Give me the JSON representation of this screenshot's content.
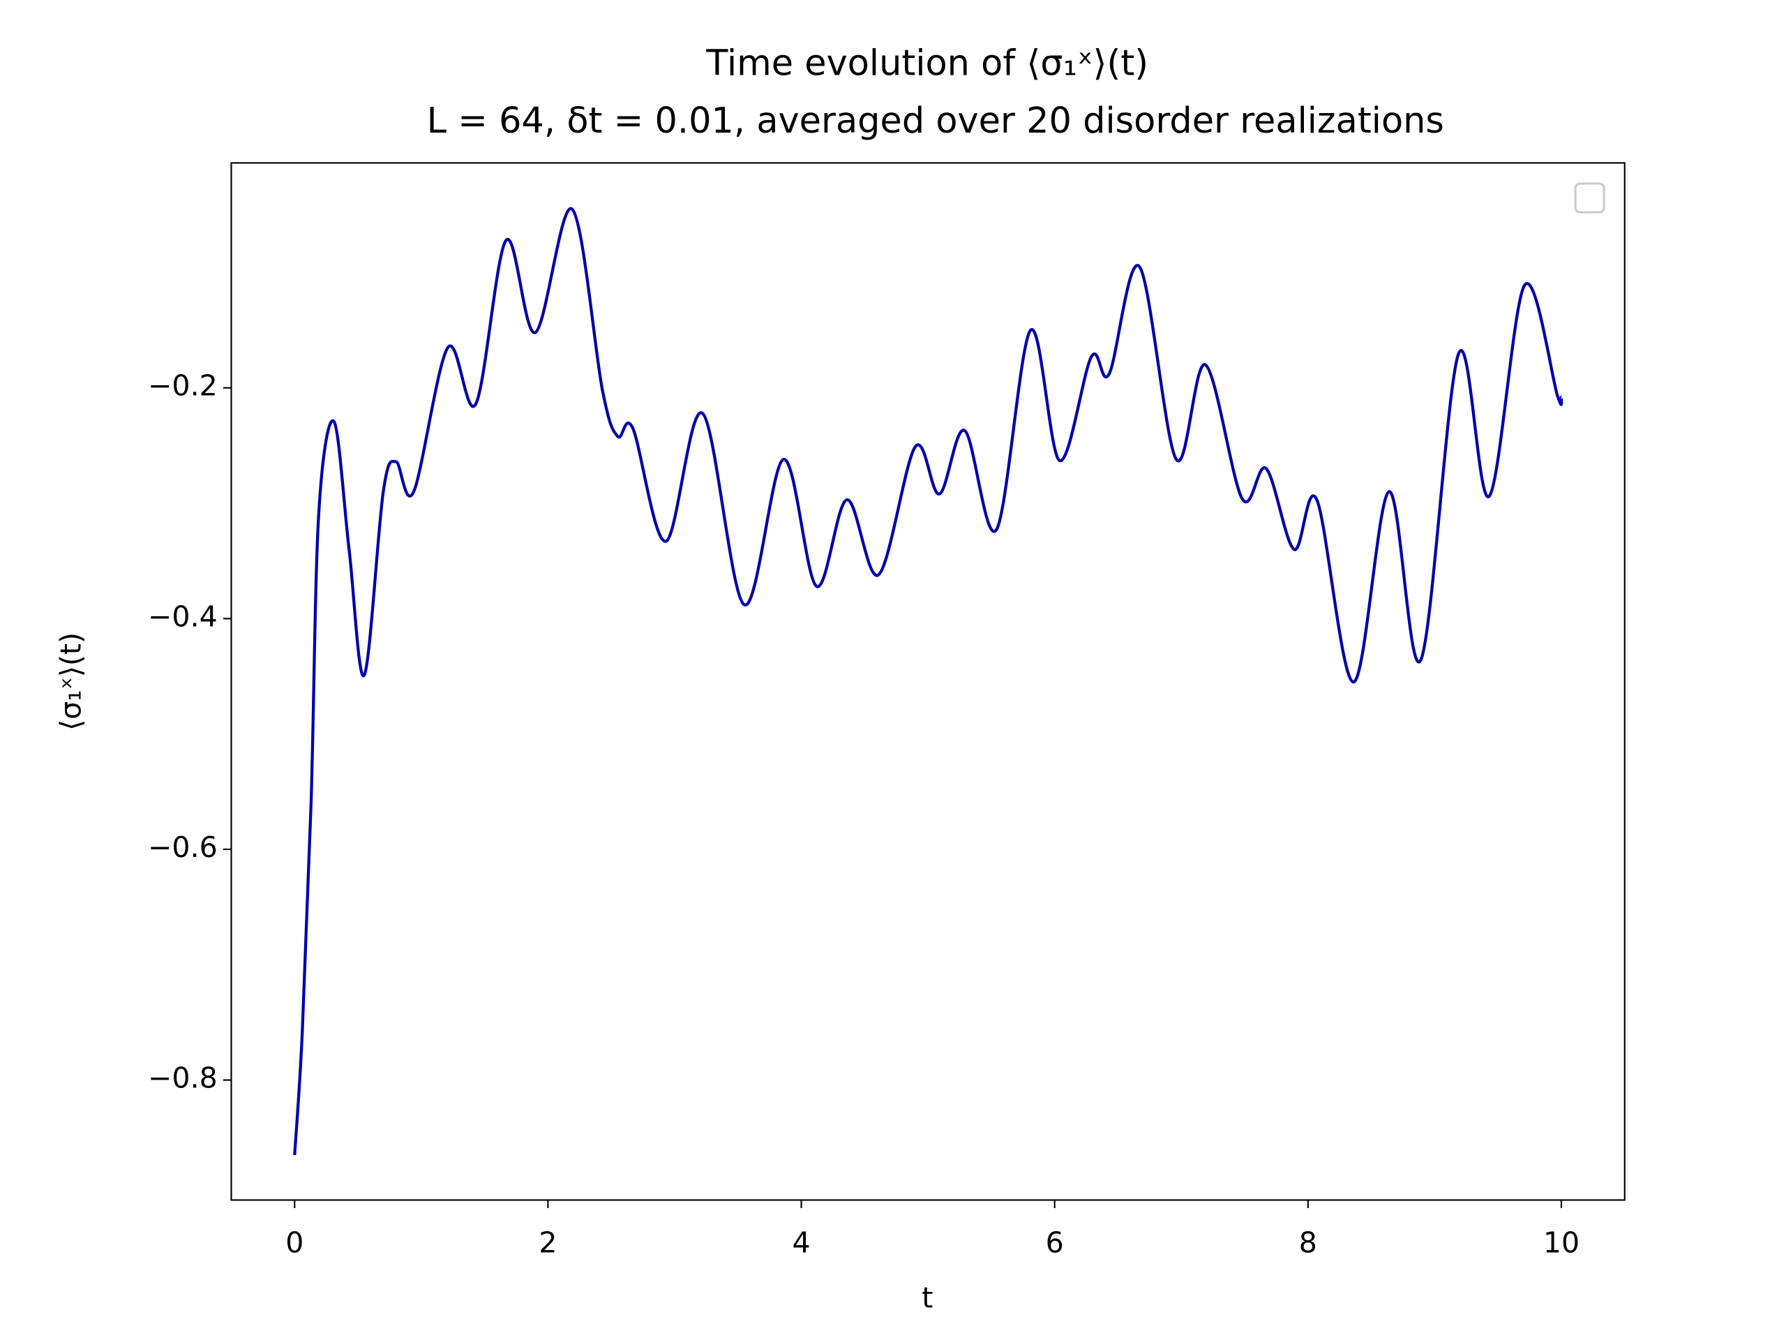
{
  "chart_data": {
    "type": "line",
    "title": "Time evolution of ⟨σ₁ˣ⟩(t)",
    "subtitle": "L = 64, δt = 0.01, averaged over 20 disorder realizations",
    "x_label": "t",
    "y_label": "⟨σ₁ˣ⟩(t)",
    "x": [
      0,
      0.06,
      0.13,
      0.19,
      0.31,
      0.43,
      0.55,
      0.7,
      0.8,
      0.94,
      1.21,
      1.43,
      1.67,
      1.9,
      2.19,
      2.43,
      2.55,
      2.67,
      2.93,
      3.22,
      3.55,
      3.86,
      4.12,
      4.36,
      4.61,
      4.9,
      5.09,
      5.29,
      5.54,
      5.81,
      6.04,
      6.29,
      6.43,
      6.67,
      6.96,
      7.19,
      7.48,
      7.67,
      7.89,
      8.07,
      8.36,
      8.64,
      8.89,
      9.19,
      9.43,
      9.71,
      9.97,
      10.0
    ],
    "series": [
      {
        "color": "#0000aa",
        "values": [
          -0.865,
          -0.76,
          -0.56,
          -0.31,
          -0.229,
          -0.34,
          -0.449,
          -0.29,
          -0.264,
          -0.29,
          -0.165,
          -0.214,
          -0.072,
          -0.152,
          -0.045,
          -0.202,
          -0.242,
          -0.235,
          -0.333,
          -0.222,
          -0.388,
          -0.262,
          -0.372,
          -0.297,
          -0.362,
          -0.251,
          -0.292,
          -0.237,
          -0.323,
          -0.15,
          -0.263,
          -0.173,
          -0.188,
          -0.095,
          -0.262,
          -0.18,
          -0.296,
          -0.27,
          -0.34,
          -0.297,
          -0.455,
          -0.29,
          -0.436,
          -0.17,
          -0.294,
          -0.111,
          -0.207,
          -0.208
        ]
      }
    ],
    "xlim": [
      -0.5,
      10.5
    ],
    "ylim": [
      -0.904,
      -0.005
    ],
    "xticks": [
      0,
      2,
      4,
      6,
      8,
      10
    ],
    "yticks": [
      {
        "value": -0.2,
        "label": "−0.2"
      },
      {
        "value": -0.4,
        "label": "−0.4"
      },
      {
        "value": -0.6,
        "label": "−0.6"
      },
      {
        "value": -0.8,
        "label": "−0.8"
      }
    ]
  }
}
